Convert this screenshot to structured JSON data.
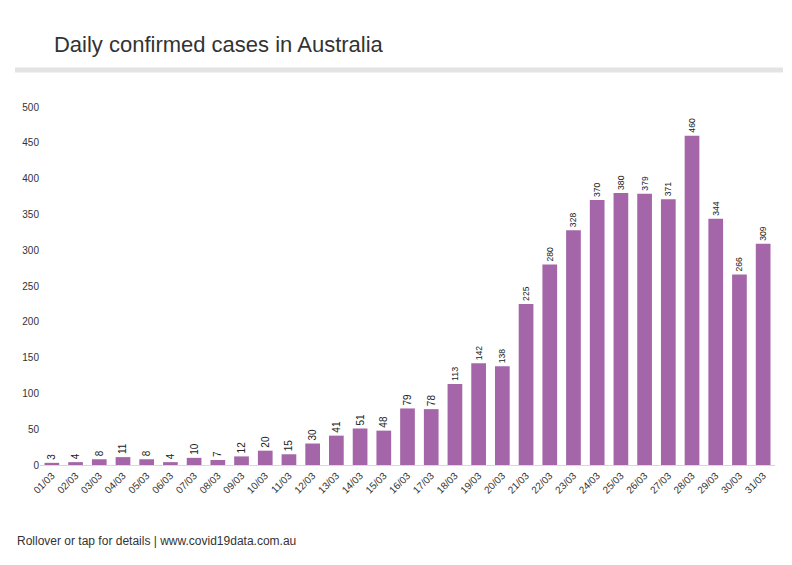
{
  "chart_data": {
    "type": "bar",
    "title": "Daily confirmed cases in Australia",
    "footer": "Rollover or tap for details | www.covid19data.com.au",
    "categories": [
      "01/03",
      "02/03",
      "03/03",
      "04/03",
      "05/03",
      "06/03",
      "07/03",
      "08/03",
      "09/03",
      "10/03",
      "11/03",
      "12/03",
      "13/03",
      "14/03",
      "15/03",
      "16/03",
      "17/03",
      "18/03",
      "19/03",
      "20/03",
      "21/03",
      "22/03",
      "23/03",
      "24/03",
      "25/03",
      "26/03",
      "27/03",
      "28/03",
      "29/03",
      "30/03",
      "31/03"
    ],
    "values": [
      3,
      4,
      8,
      11,
      8,
      4,
      10,
      7,
      12,
      20,
      15,
      30,
      41,
      51,
      48,
      79,
      78,
      113,
      142,
      138,
      225,
      280,
      328,
      370,
      380,
      379,
      371,
      460,
      344,
      266,
      309
    ],
    "color": "#a466a8",
    "ylim": [
      0,
      500
    ],
    "yticks": [
      0,
      50,
      100,
      150,
      200,
      250,
      300,
      350,
      400,
      450,
      500
    ],
    "grid": false,
    "data_labels": true
  }
}
